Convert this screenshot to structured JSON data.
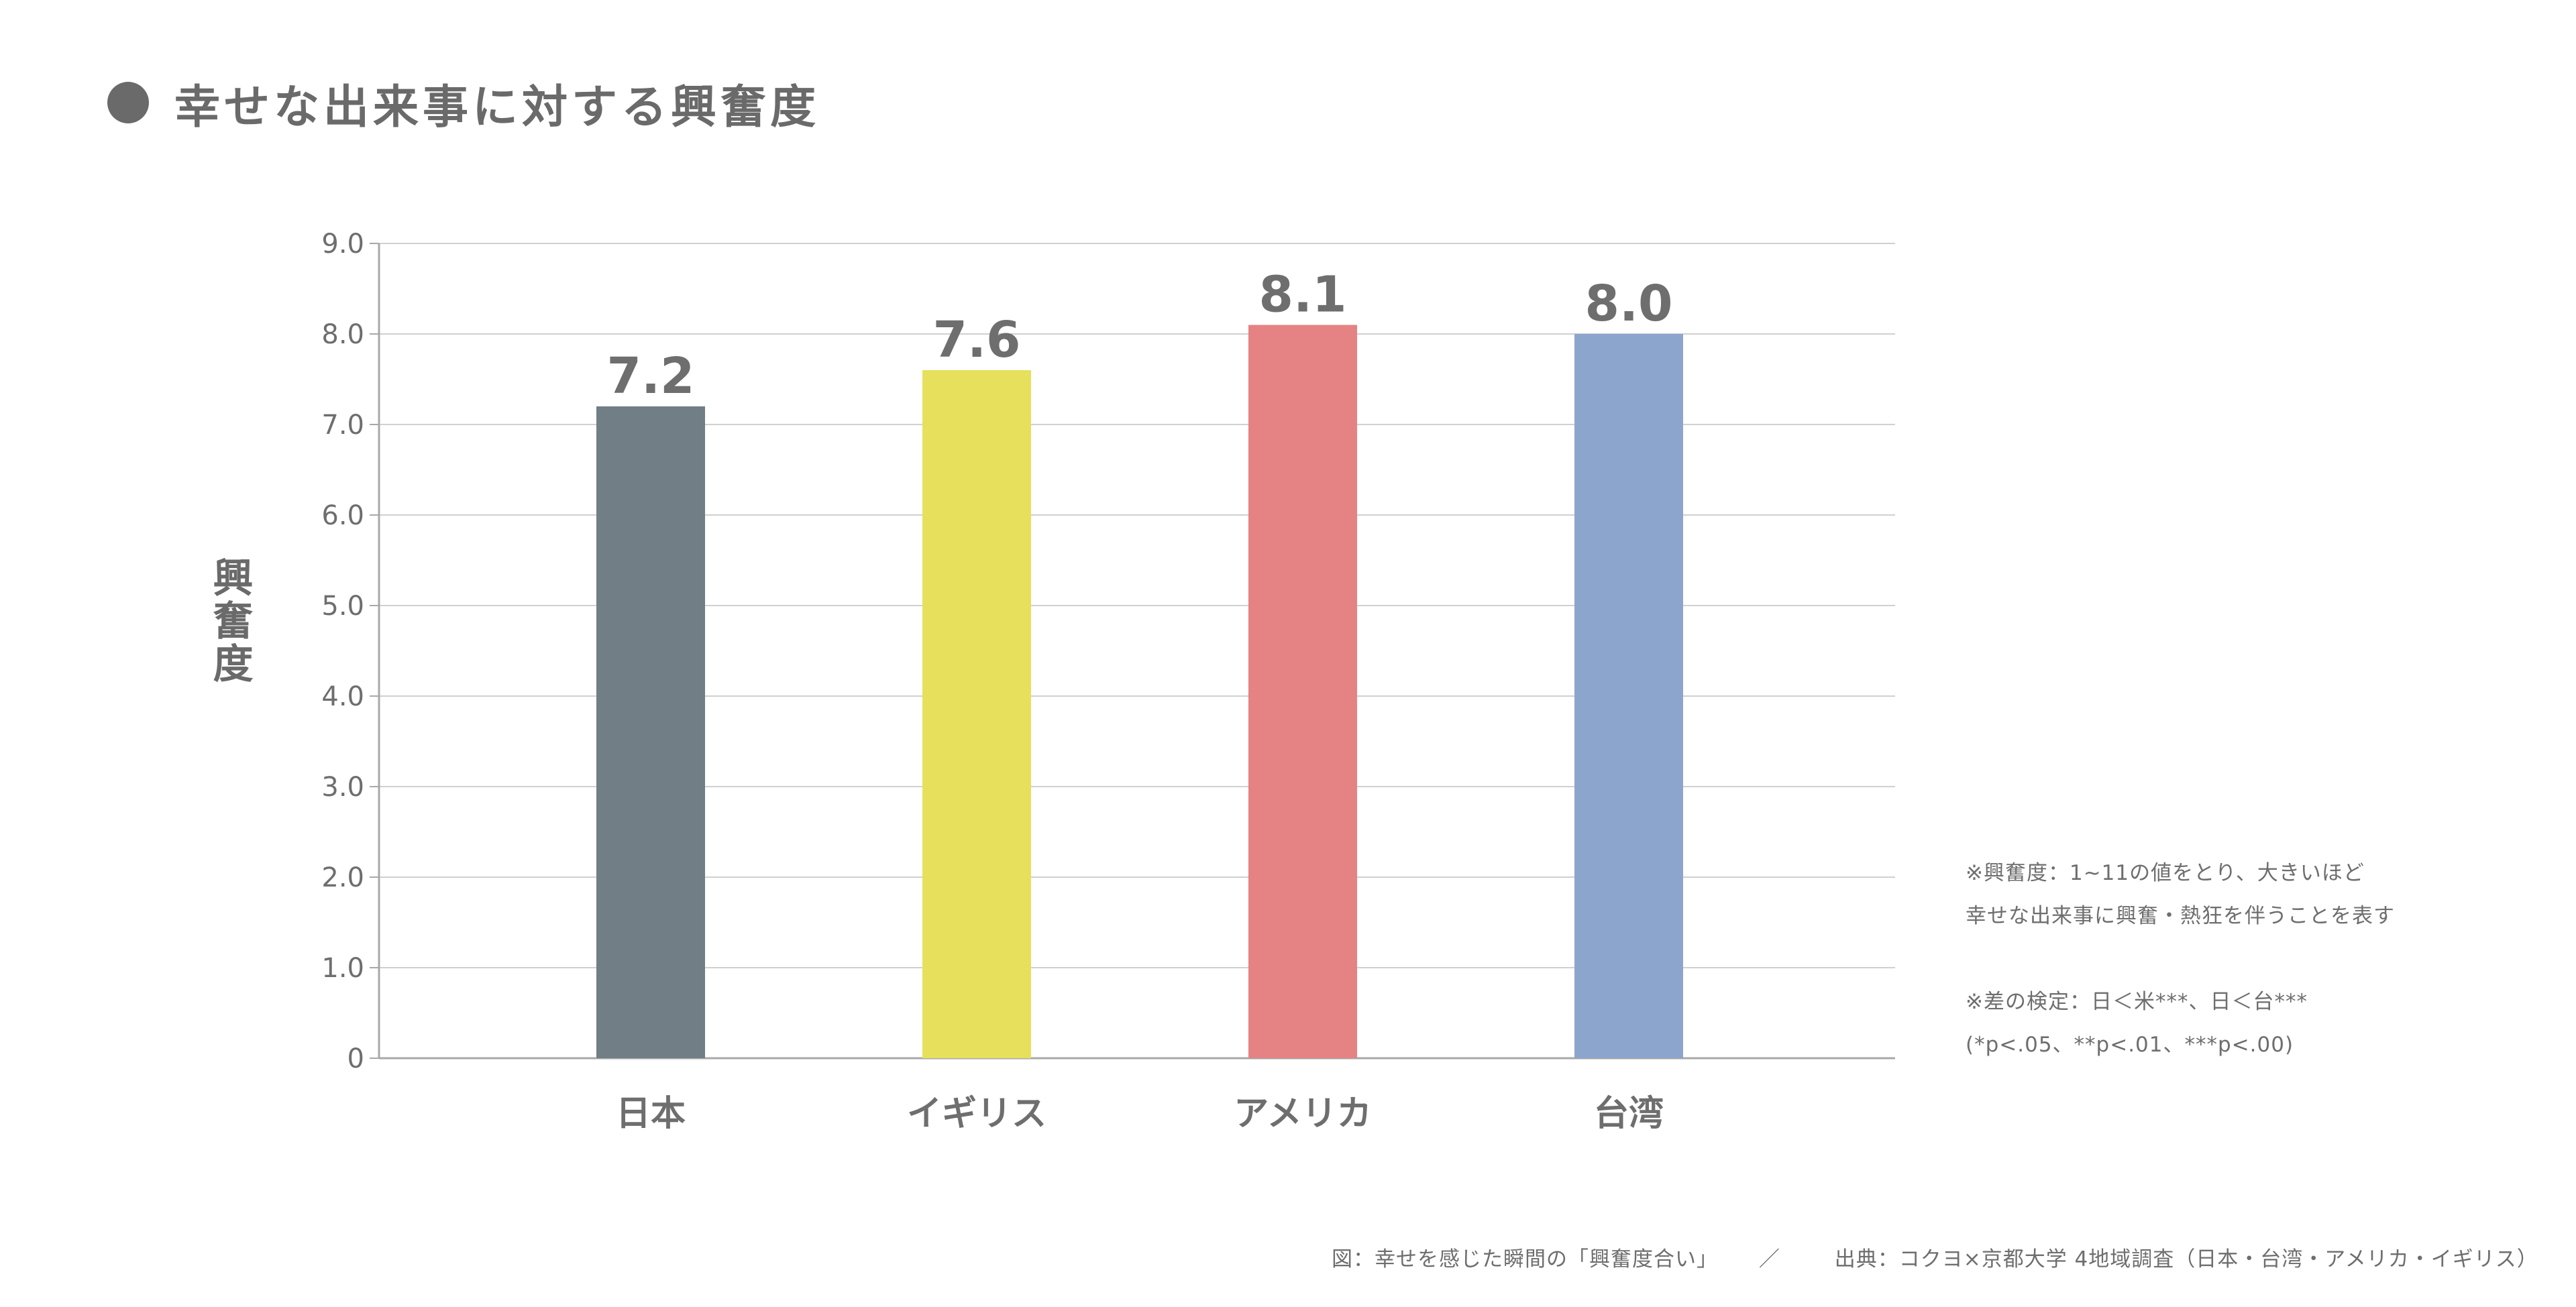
{
  "title": "幸せな出来事に対する興奮度",
  "chart_data": {
    "type": "bar",
    "categories": [
      "日本",
      "イギリス",
      "アメリカ",
      "台湾"
    ],
    "values": [
      7.2,
      7.6,
      8.1,
      8.0
    ],
    "value_labels": [
      "7.2",
      "7.6",
      "8.1",
      "8.0"
    ],
    "colors": [
      "#717e86",
      "#e6e05c",
      "#e58283",
      "#8ca5cd"
    ],
    "ylabel": "興奮度",
    "ylim": [
      0,
      9
    ],
    "yticks": [
      0,
      1,
      2,
      3,
      4,
      5,
      6,
      7,
      8,
      9
    ],
    "ytick_labels": [
      "0",
      "1.0",
      "2.0",
      "3.0",
      "4.0",
      "5.0",
      "6.0",
      "7.0",
      "8.0",
      "9.0"
    ],
    "grid": true,
    "legend": "none"
  },
  "notes": {
    "line1": "※興奮度：1~11の値をとり、大きいほど",
    "line2": "幸せな出来事に興奮・熱狂を伴うことを表す",
    "line3": "※差の検定：日＜米***、日＜台***",
    "line4": "(*p<.05、**p<.01、***p<.00)"
  },
  "footer": {
    "figure": "図：幸せを感じた瞬間の「興奮度合い」",
    "separator": "／",
    "source": "出典：コクヨ×京都大学 4地域調査（日本・台湾・アメリカ・イギリス）"
  },
  "colors": {
    "grid": "#d0d0d0",
    "axis": "#a8a8a8",
    "text": "#6e6e6e"
  }
}
